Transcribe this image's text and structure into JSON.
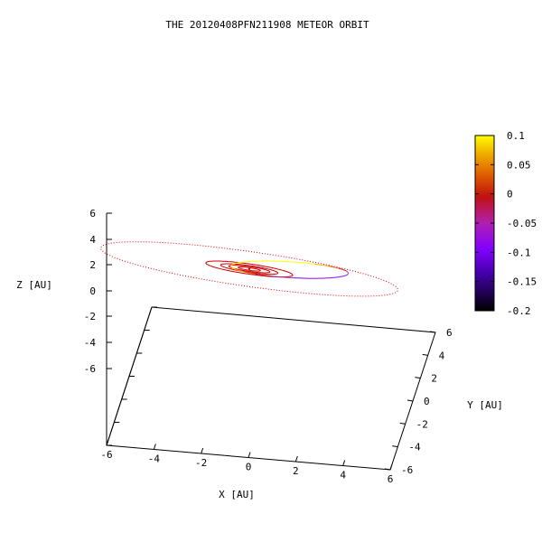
{
  "chart_data": {
    "type": "line",
    "title": "THE 20120408PFN211908 METEOR ORBIT",
    "xlabel": "X [AU]",
    "ylabel": "Y [AU]",
    "zlabel": "Z [AU]",
    "xlim": [
      -6,
      6
    ],
    "ylim": [
      -6,
      6
    ],
    "zlim": [
      -6,
      6
    ],
    "x_ticks": [
      "-6",
      "-4",
      "-2",
      "0",
      "2",
      "4",
      "6"
    ],
    "y_ticks": [
      "-6",
      "-4",
      "-2",
      "0",
      "2",
      "4",
      "6"
    ],
    "z_ticks": [
      "-6",
      "-4",
      "-2",
      "0",
      "2",
      "4",
      "6"
    ],
    "colorbar": {
      "ticks": [
        "0.1",
        "0.05",
        "0",
        "-0.05",
        "-0.1",
        "-0.15",
        "-0.2"
      ],
      "range": [
        -0.2,
        0.1
      ],
      "colors": [
        "#000000",
        "#4000a0",
        "#8000ff",
        "#b020b0",
        "#c01010",
        "#e06000",
        "#f0b000",
        "#ffff00"
      ]
    },
    "series": [
      {
        "center": [
          0,
          0
        ],
        "radius": 0.39,
        "z": 0,
        "style": "solid",
        "color": "#cc0000"
      },
      {
        "center": [
          0,
          0
        ],
        "radius": 0.72,
        "z": 0,
        "style": "solid",
        "color": "#cc0000"
      },
      {
        "center": [
          0,
          0
        ],
        "radius": 1.0,
        "z": 0,
        "style": "solid",
        "color": "#cc0000"
      },
      {
        "center": [
          0,
          0
        ],
        "radius": 1.52,
        "z": 0,
        "style": "solid",
        "color": "#cc0000"
      },
      {
        "center": [
          0,
          0
        ],
        "radius": 5.2,
        "z": 0,
        "style": "dotted",
        "color": "#dd0000"
      },
      {
        "type": "meteor_orbit",
        "center": [
          2.0,
          0.4
        ],
        "a": 3.0,
        "b": 1.6,
        "angle_deg": 25,
        "z_amp": 0.15,
        "color_by": "z"
      }
    ]
  },
  "colors": {
    "sun": "#ff0000",
    "frame": "#000000"
  }
}
